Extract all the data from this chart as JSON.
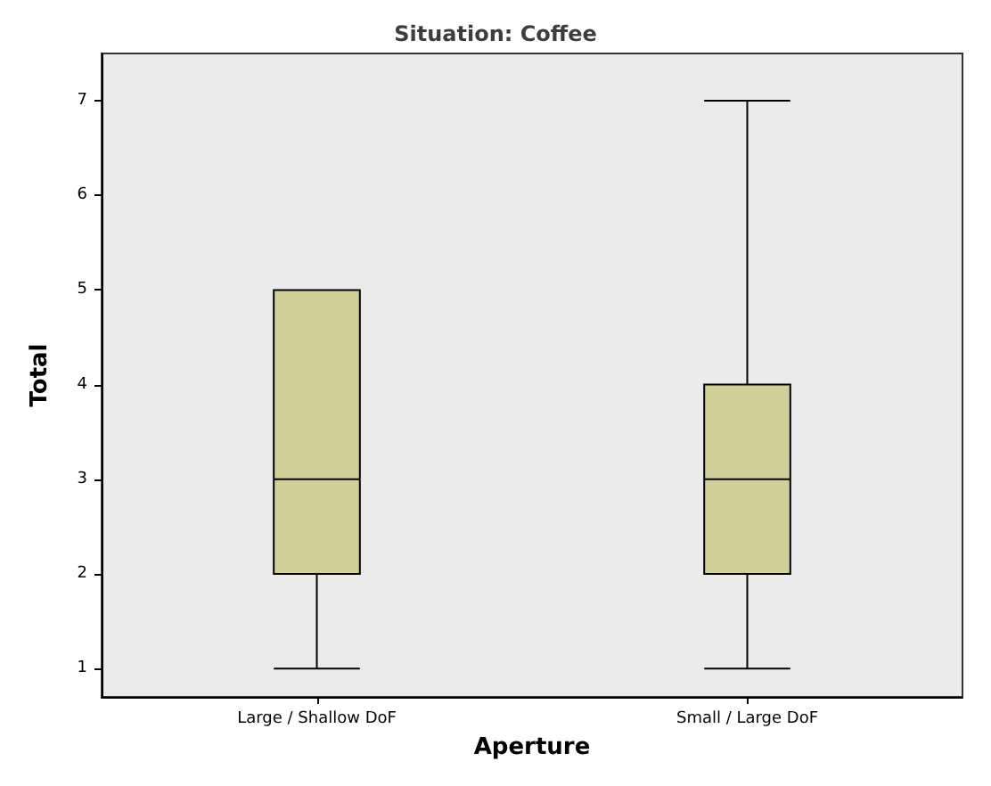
{
  "chart_data": {
    "type": "box",
    "title": "Situation: Coffee",
    "xlabel": "Aperture",
    "ylabel": "Total",
    "categories": [
      "Large / Shallow DoF",
      "Small / Large DoF"
    ],
    "series": [
      {
        "color": "#d3cf98",
        "boxes": [
          {
            "low": 1,
            "q1": 2,
            "median": 3,
            "q3": 5,
            "high": 5
          },
          {
            "low": 1,
            "q1": 2,
            "median": 3,
            "q3": 4,
            "high": 7
          }
        ]
      }
    ],
    "ylim": [
      0.7,
      7.5
    ],
    "yticks": [
      1,
      2,
      3,
      4,
      5,
      6,
      7
    ],
    "grid": false
  }
}
